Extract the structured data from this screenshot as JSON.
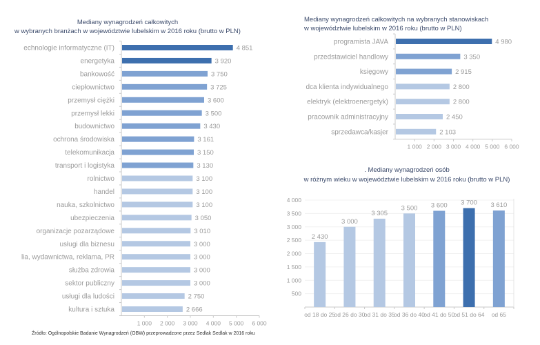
{
  "colors": {
    "dark": "#3d6fae",
    "medium": "#7fa2d2",
    "light": "#b4c8e3",
    "axis": "#c8c8c8"
  },
  "source": "Źródło: Ogólnopolskie Badanie Wynagrodzeń (OBW) przeprowadzone przez Sedlak Sedlak w 2016      roku",
  "chart_data": [
    {
      "type": "bar",
      "orientation": "horizontal",
      "title": [
        "Mediany wynagrodzeń całkowitych",
        "w wybranych branżach w województwie lubelskim  w 2016 roku (brutto w PLN)"
      ],
      "categories": [
        "echnologie informatyczne (IT)",
        "energetyka",
        "bankowość",
        "ciepłownictwo",
        "przemysł ciężki",
        "przemysł lekki",
        "budownictwo",
        "ochrona środowiska",
        "telekomunikacja",
        "transport i logistyka",
        "rolnictwo",
        "handel",
        "nauka, szkolnictwo",
        "ubezpieczenia",
        "organizacje pozarządowe",
        "usługi dla biznesu",
        "lia, wydawnictwa, reklama, PR",
        "służba zdrowia",
        "sektor publiczny",
        "usługi dla ludości",
        "kultura i sztuka"
      ],
      "values": [
        4851,
        3920,
        3750,
        3725,
        3600,
        3500,
        3430,
        3161,
        3150,
        3130,
        3100,
        3100,
        3100,
        3050,
        3010,
        3000,
        3000,
        3000,
        3000,
        2750,
        2666
      ],
      "value_labels": [
        "4 851",
        "3 920",
        "3 750",
        "3 725",
        "3 600",
        "3 500",
        "3 430",
        "3 161",
        "3 150",
        "3 130",
        "3 100",
        "3 100",
        "3 100",
        "3 050",
        "3 010",
        "3 000",
        "3 000",
        "3 000",
        "3 000",
        "2 750",
        "2 666"
      ],
      "shade": [
        "dark",
        "dark",
        "medium",
        "medium",
        "medium",
        "medium",
        "medium",
        "medium",
        "medium",
        "medium",
        "light",
        "light",
        "light",
        "light",
        "light",
        "light",
        "light",
        "light",
        "light",
        "light",
        "light"
      ],
      "xlim": [
        0,
        6000
      ],
      "ticks": [
        "1 000",
        "2 000",
        "3 000",
        "4 000",
        "5 000",
        "6 000"
      ],
      "tick_values": [
        1000,
        2000,
        3000,
        4000,
        5000,
        6000
      ],
      "grid": false
    },
    {
      "type": "bar",
      "orientation": "horizontal",
      "title": [
        "Mediany wynagrodzeń całkowitych  na wybranych stanowiskach",
        "w województwie  lubelskim  w 2016 roku (brutto w PLN)"
      ],
      "categories": [
        "programista JAVA",
        "przedstawiciel handlowy",
        "księgowy",
        "dca klienta indywidualnego",
        "elektryk (elektroenergetyk)",
        "pracownik administracyjny",
        "sprzedawca/kasjer"
      ],
      "values": [
        4980,
        3350,
        2915,
        2800,
        2800,
        2450,
        2103
      ],
      "value_labels": [
        "4 980",
        "3 350",
        "2 915",
        "2 800",
        "2 800",
        "2 450",
        "2 103"
      ],
      "shade": [
        "dark",
        "medium",
        "medium",
        "light",
        "light",
        "light",
        "light"
      ],
      "xlim": [
        0,
        6000
      ],
      "ticks": [
        "1 000",
        "2 000",
        "3 000",
        "4 000",
        "5 000",
        "6 000"
      ],
      "tick_values": [
        1000,
        2000,
        3000,
        4000,
        5000,
        6000
      ],
      "grid": false
    },
    {
      "type": "bar",
      "orientation": "vertical",
      "title": [
        ". Mediany wynagrodzeń osób",
        "w różnym wieku w województwie lubelskim w 2016 roku (brutto w PLN)"
      ],
      "categories": [
        "od 18 do 25",
        "od 26 do 30",
        "od 31 do 35",
        "od 36 do 40",
        "od 41 do 50",
        "od 51 do 64",
        "od 65"
      ],
      "values": [
        2430,
        3000,
        3305,
        3500,
        3600,
        3700,
        3610
      ],
      "value_labels": [
        "2 430",
        "3 000",
        "3 305",
        "3 500",
        "3 600",
        "3 700",
        "3 610"
      ],
      "shade": [
        "light",
        "light",
        "light",
        "light",
        "medium",
        "dark",
        "medium"
      ],
      "ylim": [
        0,
        4000
      ],
      "ticks": [
        "500",
        "1 000",
        "1 500",
        "2 000",
        "2 500",
        "3 000",
        "3 500",
        "4 000"
      ],
      "tick_values": [
        500,
        1000,
        1500,
        2000,
        2500,
        3000,
        3500,
        4000
      ],
      "grid": true
    }
  ]
}
